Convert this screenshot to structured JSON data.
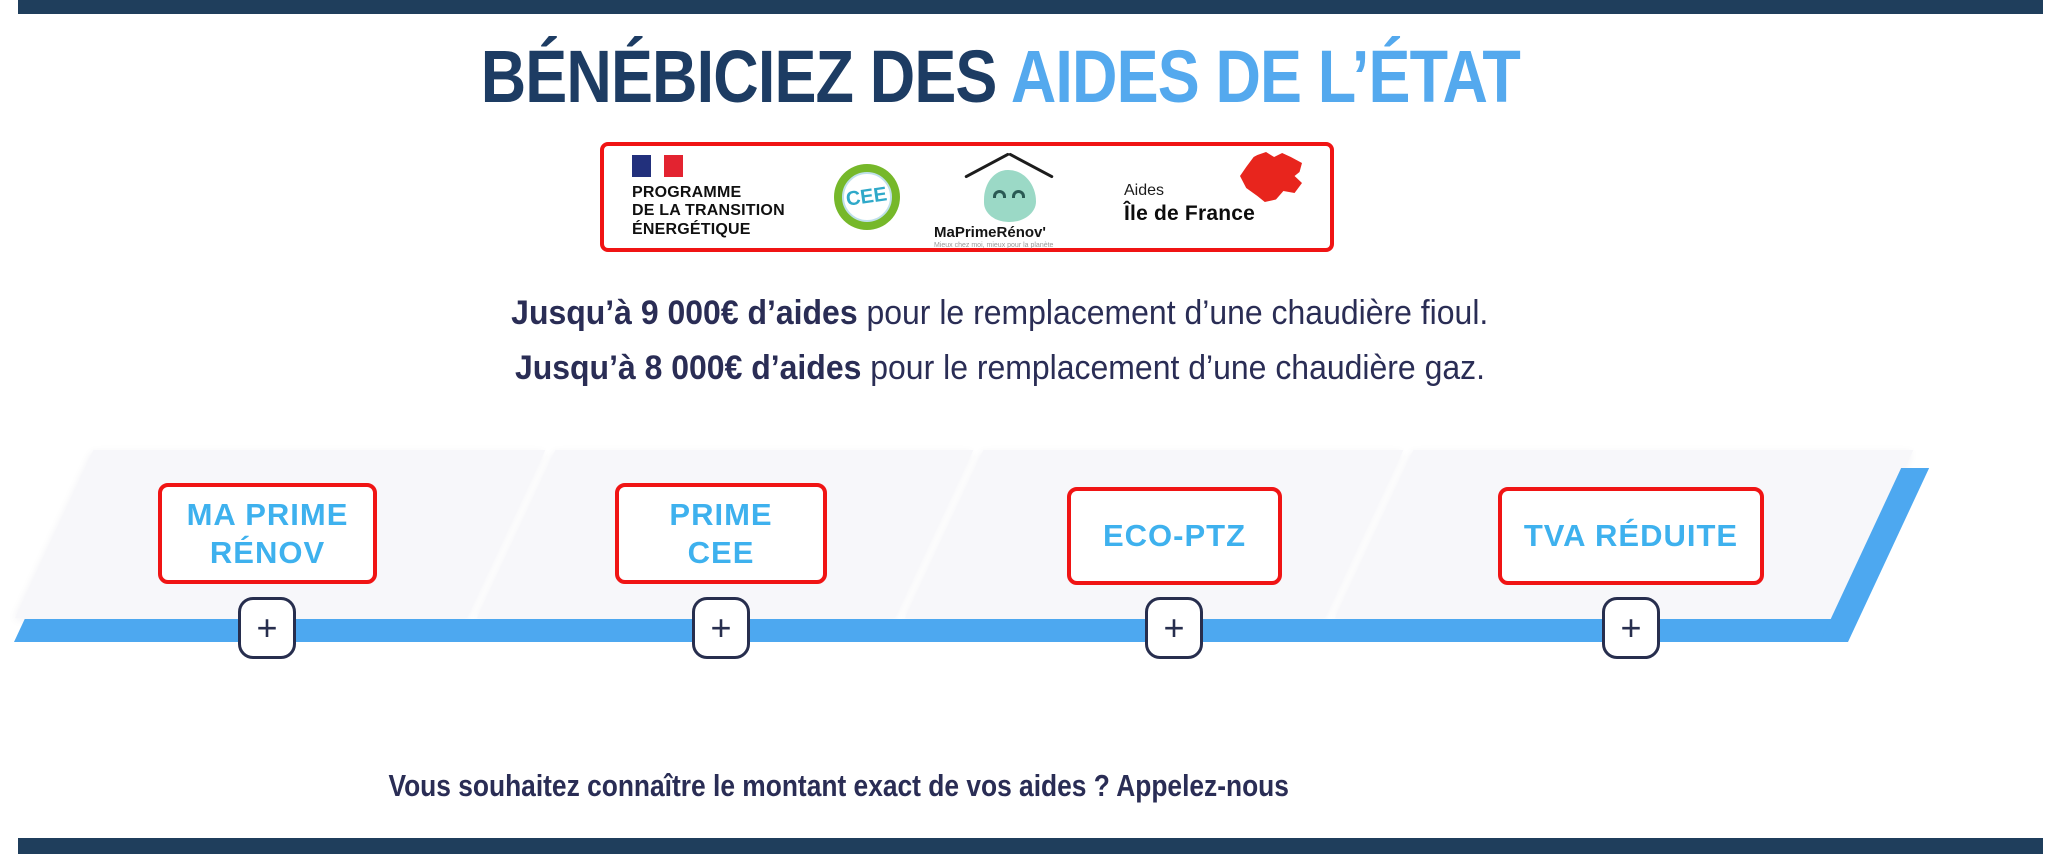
{
  "title": {
    "part_dark": "BÉNÉBICIEZ DES ",
    "part_light": "AIDES DE L’ÉTAT"
  },
  "partner_logos": {
    "programme": {
      "lines": [
        "PROGRAMME",
        "DE LA TRANSITION",
        "ÉNERGÉTIQUE"
      ]
    },
    "cee": {
      "label": "CEE"
    },
    "maprimerenov": {
      "name": "MaPrimeRénov'",
      "tagline": "Mieux chez moi, mieux pour la planète"
    },
    "ile_de_france": {
      "line1": "Aides",
      "line2": "Île de France"
    }
  },
  "offers": [
    {
      "bold": "Jusqu’à 9 000€ d’aides",
      "rest": " pour le remplacement d’une chaudière fioul."
    },
    {
      "bold": "Jusqu’à 8 000€ d’aides",
      "rest": " pour le remplacement d’une chaudière gaz."
    }
  ],
  "aids": [
    {
      "line1": "MA PRIME",
      "line2": "RÉNOV",
      "expand": "+"
    },
    {
      "line1": "PRIME",
      "line2": "CEE",
      "expand": "+"
    },
    {
      "line1": "ECO-PTZ",
      "expand": "+"
    },
    {
      "line1": "TVA RÉDUITE",
      "expand": "+"
    }
  ],
  "cta": {
    "text": "Vous souhaitez connaître le montant exact de vos aides ? Appelez-nous"
  },
  "colors": {
    "navy_bar": "#1f3e5c",
    "title_dark": "#1d3c63",
    "sky_blue": "#54a9ee",
    "label_blue": "#3eb1ee",
    "timeline_blue": "#4da8f0",
    "alert_red": "#f01414",
    "text_dark": "#2a2d55",
    "cee_green": "#76b82a",
    "mpr_mint": "#9bd9c6",
    "idf_red": "#e8251d"
  }
}
